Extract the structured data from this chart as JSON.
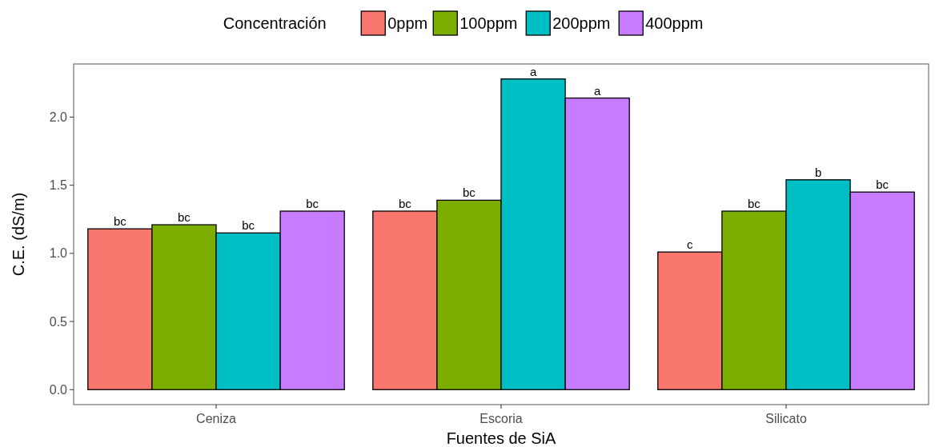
{
  "chart_data": {
    "type": "bar",
    "xlabel": "Fuentes de SiA",
    "ylabel": "C.E. (dS/m)",
    "legend_title": "Concentración",
    "legend": "top",
    "grid": false,
    "categories": [
      "Ceniza",
      "Escoria",
      "Silicato"
    ],
    "ylim": [
      -0.11,
      2.39
    ],
    "yticks": [
      {
        "value": 0,
        "label": "0.0"
      },
      {
        "value": 0.5,
        "label": "0.5"
      },
      {
        "value": 1,
        "label": "1.0"
      },
      {
        "value": 1.5,
        "label": "1.5"
      },
      {
        "value": 2,
        "label": "2.0"
      }
    ],
    "series": [
      {
        "name": "0ppm",
        "color": "#f8766d",
        "values": [
          1.18,
          1.31,
          1.01
        ],
        "value_labels": [
          "bc",
          "bc",
          "c"
        ]
      },
      {
        "name": "100ppm",
        "color": "#7cae00",
        "values": [
          1.21,
          1.39,
          1.31
        ],
        "value_labels": [
          "bc",
          "bc",
          "bc"
        ]
      },
      {
        "name": "200ppm",
        "color": "#00bfc4",
        "values": [
          1.15,
          2.28,
          1.54
        ],
        "value_labels": [
          "bc",
          "a",
          "b"
        ]
      },
      {
        "name": "400ppm",
        "color": "#c77cff",
        "values": [
          1.31,
          2.14,
          1.45
        ],
        "value_labels": [
          "bc",
          "a",
          "bc"
        ]
      }
    ]
  }
}
